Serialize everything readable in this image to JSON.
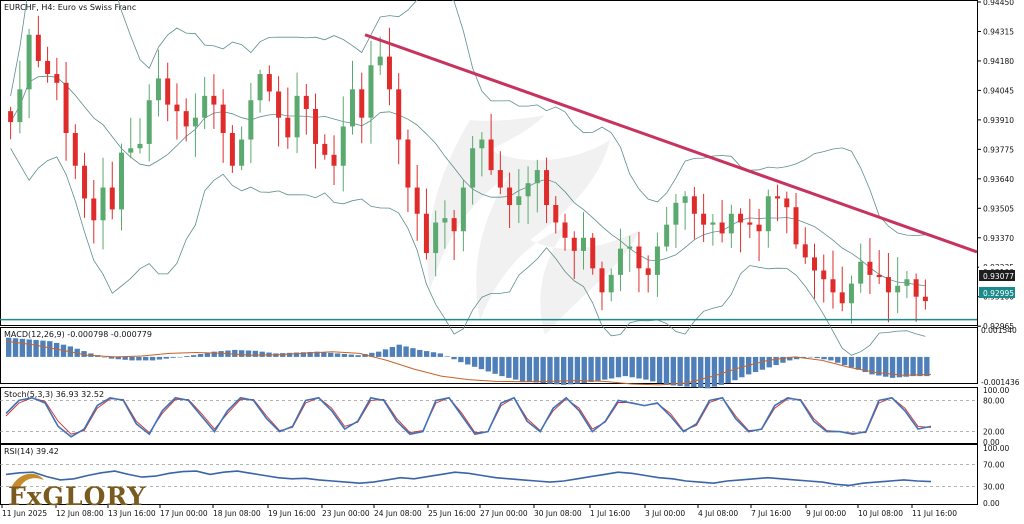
{
  "chart_data": [
    {
      "type": "candlestick",
      "title": "EURCHF, H4:  Euro vs Swiss Franc",
      "symbol": "EURCHF",
      "timeframe": "H4",
      "ylim": [
        0.92975,
        0.9445
      ],
      "y_ticks": [
        "0.94450",
        "0.94315",
        "0.94180",
        "0.94045",
        "0.93910",
        "0.93775",
        "0.93640",
        "0.93505",
        "0.93370",
        "0.93235",
        "0.93100",
        "0.92965"
      ],
      "x_labels": [
        "11 Jun 2025",
        "12 Jun 08:00",
        "13 Jun 16:00",
        "17 Jun 00:00",
        "18 Jun 08:00",
        "19 Jun 16:00",
        "23 Jun 00:00",
        "24 Jun 08:00",
        "25 Jun 16:00",
        "27 Jun 00:00",
        "30 Jun 08:00",
        "1 Jul 16:00",
        "3 Jul 00:00",
        "4 Jul 08:00",
        "7 Jul 16:00",
        "9 Jul 00:00",
        "10 Jul 08:00",
        "11 Jul 16:00"
      ],
      "price_label": "0.93077",
      "price_label_behind": "0.93100",
      "support_level": "0.92995",
      "support_value": 0.92995,
      "trendline": {
        "from": 0.943,
        "to": 0.93305
      },
      "close_path": [
        0.939,
        0.9405,
        0.943,
        0.9418,
        0.9412,
        0.9408,
        0.9385,
        0.937,
        0.9355,
        0.9345,
        0.936,
        0.935,
        0.9376,
        0.9378,
        0.938,
        0.94,
        0.941,
        0.9398,
        0.9395,
        0.9388,
        0.9392,
        0.9402,
        0.9398,
        0.9385,
        0.937,
        0.9382,
        0.94,
        0.9412,
        0.9404,
        0.9392,
        0.9383,
        0.9402,
        0.9396,
        0.938,
        0.9375,
        0.937,
        0.9388,
        0.9405,
        0.9392,
        0.9416,
        0.942,
        0.9405,
        0.9382,
        0.936,
        0.9348,
        0.933,
        0.9344,
        0.9346,
        0.934,
        0.936,
        0.9378,
        0.9382,
        0.9368,
        0.936,
        0.9352,
        0.9356,
        0.9362,
        0.9368,
        0.9352,
        0.9344,
        0.9337,
        0.9331,
        0.9337,
        0.9323,
        0.9312,
        0.932,
        0.9332,
        0.9333,
        0.9323,
        0.932,
        0.9333,
        0.9343,
        0.9353,
        0.9356,
        0.9348,
        0.9343,
        0.9344,
        0.9339,
        0.9348,
        0.9344,
        0.9343,
        0.934,
        0.9356,
        0.9355,
        0.9351,
        0.9334,
        0.9328,
        0.9322,
        0.9318,
        0.9312,
        0.9307,
        0.9316,
        0.9326,
        0.932,
        0.9319,
        0.9312,
        0.9315,
        0.9318,
        0.931,
        0.9308
      ]
    },
    {
      "type": "histogram+line",
      "title": "MACD(12,26,9) -0.000798 -0.000779",
      "ylim": [
        -0.001436,
        0.00154
      ],
      "y_ticks": [
        "0.001540",
        "-0.001436"
      ],
      "histogram_path": [
        0.0011,
        0.001,
        0.0009,
        0.0006,
        0.0002,
        -0.0001,
        -0.0002,
        -0.0002,
        -5e-05,
        0.0001,
        0.0003,
        0.0004,
        0.00035,
        0.0002,
        0.00025,
        0.0003,
        0.0002,
        0.0001,
        0.0003,
        0.0007,
        0.0004,
        0.0002,
        -0.0003,
        -0.0007,
        -0.0011,
        -0.0014,
        -0.0015,
        -0.0016,
        -0.0015,
        -0.0013,
        -0.0011,
        -0.0013,
        -0.0016,
        -0.0017,
        -0.0018,
        -0.0015,
        -0.001,
        -0.0006,
        -0.0002,
        0.0,
        -0.0002,
        -0.0006,
        -0.001,
        -0.0012,
        -0.0011
      ],
      "signal_path": [
        0.0009,
        0.0007,
        0.0004,
        0.0001,
        0.0,
        5e-05,
        0.0002,
        0.00025,
        0.0002,
        0.0001,
        0.00012,
        0.00022,
        0.0003,
        0.0002,
        -0.0002,
        -0.0007,
        -0.0011,
        -0.0013,
        -0.0014,
        -0.00142,
        -0.0014,
        -0.00135,
        -0.0014,
        -0.00155,
        -0.0016,
        -0.0015,
        -0.0011,
        -0.0006,
        -0.0002,
        0.0,
        -0.0002,
        -0.0006,
        -0.0009,
        -0.00105,
        -0.001
      ]
    },
    {
      "type": "line",
      "title": "Stoch(5,3,3) 36.93 32.52",
      "ylim": [
        0,
        100
      ],
      "y_ticks": [
        "100.00",
        "80.00",
        "20.00",
        "0.00"
      ],
      "levels": [
        80,
        20
      ],
      "main_path": [
        55,
        80,
        85,
        75,
        30,
        10,
        25,
        70,
        85,
        80,
        35,
        15,
        60,
        85,
        80,
        50,
        20,
        60,
        85,
        80,
        45,
        20,
        30,
        80,
        85,
        60,
        25,
        40,
        85,
        80,
        40,
        15,
        20,
        80,
        85,
        50,
        15,
        20,
        75,
        85,
        40,
        20,
        65,
        85,
        60,
        20,
        40,
        80,
        75,
        70,
        75,
        50,
        20,
        35,
        80,
        85,
        45,
        20,
        25,
        70,
        85,
        80,
        40,
        20,
        20,
        15,
        20,
        80,
        85,
        60,
        25,
        30
      ],
      "signal_path": [
        50,
        75,
        85,
        78,
        40,
        15,
        22,
        65,
        83,
        82,
        40,
        18,
        55,
        82,
        82,
        55,
        25,
        55,
        82,
        82,
        50,
        22,
        28,
        75,
        85,
        65,
        30,
        38,
        80,
        82,
        45,
        18,
        22,
        75,
        85,
        55,
        18,
        20,
        70,
        85,
        45,
        22,
        60,
        83,
        65,
        25,
        38,
        76,
        76,
        70,
        74,
        55,
        22,
        32,
        76,
        85,
        50,
        22,
        24,
        65,
        83,
        82,
        45,
        22,
        20,
        17,
        18,
        75,
        85,
        65,
        30,
        28
      ]
    },
    {
      "type": "line",
      "title": "RSI(14) 39.42",
      "ylim": [
        0,
        100
      ],
      "y_ticks": [
        "100.00",
        "70.00",
        "30.00",
        "0.00"
      ],
      "levels": [
        70,
        30
      ],
      "rsi_path": [
        52,
        55,
        56,
        48,
        42,
        44,
        50,
        55,
        58,
        52,
        47,
        49,
        54,
        57,
        58,
        52,
        56,
        58,
        54,
        50,
        46,
        44,
        45,
        42,
        40,
        38,
        36,
        38,
        42,
        46,
        44,
        48,
        52,
        56,
        54,
        50,
        46,
        44,
        42,
        40,
        38,
        40,
        44,
        48,
        52,
        56,
        54,
        50,
        46,
        44,
        40,
        38,
        36,
        40,
        42,
        44,
        46,
        44,
        42,
        40,
        38,
        34,
        32,
        36,
        38,
        40,
        42,
        40,
        39
      ]
    }
  ],
  "branding": {
    "logo_text": "FxGLORY"
  },
  "colors": {
    "bull_candle": "#5aa96f",
    "bear_candle": "#e02b2b",
    "bollinger": "#5f8d8d",
    "trendline": "#c7325e",
    "support_line": "#1b8a8a",
    "price_label_bg": "#1e1e1e",
    "support_label_bg": "#1b8a8a",
    "macd_hist": "#4f7fb8",
    "macd_signal": "#c6632b",
    "stoch_main": "#3f72b8",
    "stoch_signal": "#d0302e",
    "rsi_line": "#3a64a8",
    "level_line": "#9a9a9a"
  }
}
